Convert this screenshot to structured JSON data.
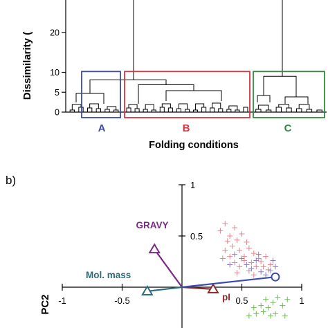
{
  "chart_data": [
    {
      "type": "dendrogram",
      "ylabel": "Dissimilarity (",
      "xlabel": "Folding conditions",
      "yticks": [
        0,
        5,
        10,
        20
      ],
      "ylim": [
        0,
        22
      ],
      "root_height": 22,
      "merges": [
        {
          "name": "ab-merge",
          "height": 8.1
        },
        {
          "name": "ab-c-merge",
          "height": 22
        },
        {
          "name": "a-merge",
          "height": 4.7
        },
        {
          "name": "b-merge",
          "height": 6.9
        },
        {
          "name": "c-merge",
          "height": 9.0
        }
      ],
      "clusters": [
        {
          "label": "A",
          "color": "#3a4aa8",
          "box_height": 10.2,
          "leaf_count": 12
        },
        {
          "label": "B",
          "color": "#d8333f",
          "box_height": 10.2,
          "leaf_count": 30
        },
        {
          "label": "C",
          "color": "#2f8a3a",
          "box_height": 10.2,
          "leaf_count": 14
        }
      ]
    },
    {
      "type": "scatter",
      "panel_label": "b)",
      "ylabel": "PC2",
      "xticks": [
        -1,
        -0.5,
        0.5,
        1
      ],
      "yticks": [
        0.5,
        1
      ],
      "xlim": [
        -1,
        1
      ],
      "ylim": [
        -0.3,
        1
      ],
      "loadings": [
        {
          "name": "GRAVY",
          "x": -0.23,
          "y": 0.37,
          "color": "#7a2a86",
          "marker": "triangle"
        },
        {
          "name": "Mol. mass",
          "x": -0.29,
          "y": -0.04,
          "color": "#2c6a7a",
          "marker": "triangle"
        },
        {
          "name": "pI",
          "x": 0.26,
          "y": -0.02,
          "color": "#8a2a2a",
          "marker": "triangle"
        },
        {
          "name": "",
          "x": 0.78,
          "y": 0.1,
          "color": "#3b4bb0",
          "marker": "circle"
        }
      ],
      "point_groups": [
        {
          "cluster": "B",
          "color": "#e8828e",
          "points": [
            [
              0.32,
              0.55
            ],
            [
              0.36,
              0.62
            ],
            [
              0.4,
              0.5
            ],
            [
              0.44,
              0.58
            ],
            [
              0.38,
              0.45
            ],
            [
              0.42,
              0.4
            ],
            [
              0.46,
              0.46
            ],
            [
              0.5,
              0.52
            ],
            [
              0.54,
              0.44
            ],
            [
              0.48,
              0.36
            ],
            [
              0.52,
              0.3
            ],
            [
              0.56,
              0.38
            ],
            [
              0.6,
              0.33
            ],
            [
              0.64,
              0.28
            ],
            [
              0.58,
              0.24
            ],
            [
              0.62,
              0.2
            ],
            [
              0.66,
              0.25
            ],
            [
              0.7,
              0.3
            ],
            [
              0.68,
              0.2
            ],
            [
              0.72,
              0.17
            ],
            [
              0.4,
              0.3
            ],
            [
              0.44,
              0.24
            ],
            [
              0.48,
              0.2
            ],
            [
              0.52,
              0.26
            ],
            [
              0.36,
              0.36
            ],
            [
              0.34,
              0.28
            ],
            [
              0.56,
              0.16
            ],
            [
              0.6,
              0.12
            ],
            [
              0.74,
              0.22
            ],
            [
              0.46,
              0.14
            ]
          ]
        },
        {
          "cluster": "A",
          "color": "#8a79cf",
          "points": [
            [
              0.5,
              0.28
            ],
            [
              0.54,
              0.22
            ],
            [
              0.58,
              0.18
            ],
            [
              0.62,
              0.26
            ],
            [
              0.66,
              0.15
            ],
            [
              0.7,
              0.12
            ],
            [
              0.74,
              0.16
            ],
            [
              0.78,
              0.2
            ],
            [
              0.76,
              0.26
            ],
            [
              0.64,
              0.32
            ],
            [
              0.44,
              0.32
            ],
            [
              0.4,
              0.22
            ]
          ]
        },
        {
          "cluster": "C",
          "color": "#6dbb53",
          "points": [
            [
              0.8,
              -0.1
            ],
            [
              0.76,
              -0.15
            ],
            [
              0.72,
              -0.2
            ],
            [
              0.84,
              -0.18
            ],
            [
              0.68,
              -0.24
            ],
            [
              0.62,
              -0.26
            ],
            [
              0.56,
              -0.28
            ],
            [
              0.78,
              -0.26
            ],
            [
              0.86,
              -0.28
            ],
            [
              0.7,
              -0.12
            ],
            [
              0.66,
              -0.18
            ],
            [
              0.88,
              -0.12
            ],
            [
              0.74,
              -0.28
            ],
            [
              0.6,
              -0.2
            ]
          ]
        }
      ]
    }
  ]
}
